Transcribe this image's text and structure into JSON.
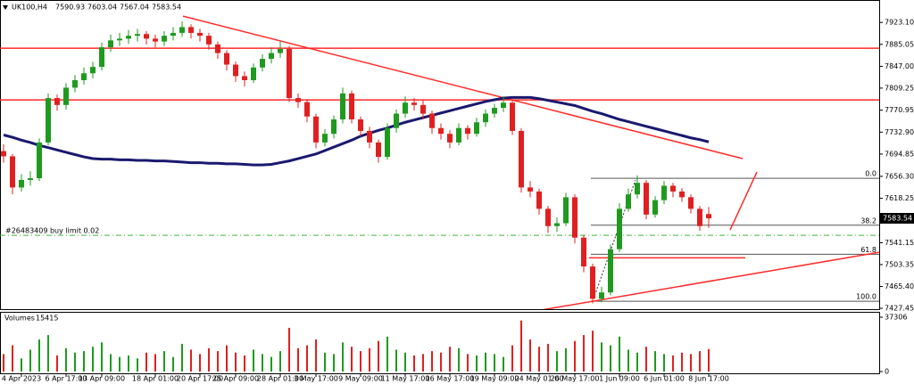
{
  "chart_data": {
    "type": "candlestick",
    "symbol": "UK100,H4",
    "categories": [
      null,
      null,
      "4 Apr 2023",
      null,
      null,
      null,
      null,
      "6 Apr 17:00",
      null,
      null,
      null,
      "13 Apr 09:00",
      null,
      null,
      null,
      null,
      null,
      "18 Apr 01:00",
      null,
      null,
      null,
      null,
      "20 Apr 17:00",
      null,
      null,
      null,
      "25 Apr 09:00",
      null,
      null,
      null,
      null,
      "28 Apr 01:00",
      null,
      null,
      null,
      "3 May 17:00",
      null,
      null,
      null,
      null,
      "9 May 09:00",
      null,
      null,
      null,
      null,
      "11 May 17:00",
      null,
      null,
      null,
      null,
      "16 May 17:00",
      null,
      null,
      null,
      null,
      "19 May 09:00",
      null,
      null,
      null,
      null,
      "24 May 01:00",
      null,
      null,
      null,
      "26 May 17:00",
      null,
      null,
      null,
      null,
      "1 Jun 09:00",
      null,
      null,
      null,
      null,
      "6 Jun 01:00",
      null,
      null,
      null,
      null,
      "8 Jun 17:00"
    ],
    "open": [
      7700,
      7691,
      7637,
      7650,
      7653,
      7715,
      7792,
      7780,
      7810,
      7823,
      7835,
      7846,
      7880,
      7892,
      7895,
      7900,
      7903,
      7895,
      7890,
      7900,
      7905,
      7915,
      7905,
      7900,
      7885,
      7870,
      7850,
      7830,
      7823,
      7845,
      7860,
      7870,
      7877,
      7792,
      7785,
      7760,
      7715,
      7730,
      7755,
      7800,
      7755,
      7735,
      7715,
      7690,
      7740,
      7765,
      7784,
      7780,
      7765,
      7740,
      7730,
      7715,
      7740,
      7730,
      7750,
      7765,
      7775,
      7784,
      7735,
      7637,
      7630,
      7600,
      7570,
      7575,
      7620,
      7550,
      7500,
      7444,
      7455,
      7530,
      7600,
      7625,
      7645,
      7590,
      7615,
      7640,
      7630,
      7620,
      7600,
      7590.93
    ],
    "high": [
      7712,
      7695,
      7660,
      7665,
      7722,
      7800,
      7798,
      7818,
      7832,
      7845,
      7855,
      7888,
      7902,
      7905,
      7910,
      7912,
      7908,
      7902,
      7908,
      7915,
      7925,
      7920,
      7912,
      7905,
      7890,
      7875,
      7855,
      7838,
      7852,
      7868,
      7880,
      7890,
      7882,
      7800,
      7790,
      7765,
      7738,
      7762,
      7810,
      7805,
      7760,
      7742,
      7720,
      7748,
      7772,
      7795,
      7792,
      7788,
      7770,
      7748,
      7736,
      7748,
      7745,
      7758,
      7772,
      7782,
      7795,
      7790,
      7740,
      7648,
      7635,
      7605,
      7585,
      7628,
      7625,
      7555,
      7505,
      7465,
      7538,
      7610,
      7635,
      7658,
      7650,
      7622,
      7648,
      7645,
      7636,
      7625,
      7605,
      7603.04
    ],
    "low": [
      7680,
      7625,
      7630,
      7640,
      7648,
      7710,
      7770,
      7772,
      7802,
      7815,
      7826,
      7840,
      7872,
      7882,
      7886,
      7890,
      7885,
      7880,
      7882,
      7892,
      7898,
      7895,
      7890,
      7876,
      7860,
      7840,
      7820,
      7812,
      7818,
      7838,
      7852,
      7862,
      7785,
      7775,
      7750,
      7705,
      7708,
      7722,
      7748,
      7748,
      7725,
      7705,
      7680,
      7685,
      7732,
      7758,
      7770,
      7755,
      7730,
      7720,
      7705,
      7710,
      7720,
      7725,
      7742,
      7758,
      7768,
      7728,
      7628,
      7620,
      7590,
      7558,
      7560,
      7570,
      7540,
      7490,
      7436,
      7438,
      7450,
      7525,
      7595,
      7618,
      7582,
      7585,
      7608,
      7620,
      7612,
      7592,
      7562,
      7567.04
    ],
    "close": [
      7691,
      7637,
      7650,
      7653,
      7715,
      7792,
      7780,
      7810,
      7823,
      7835,
      7846,
      7880,
      7892,
      7895,
      7900,
      7903,
      7895,
      7890,
      7900,
      7905,
      7915,
      7905,
      7900,
      7885,
      7870,
      7850,
      7830,
      7823,
      7845,
      7860,
      7870,
      7877,
      7792,
      7785,
      7760,
      7715,
      7730,
      7755,
      7800,
      7755,
      7735,
      7715,
      7690,
      7740,
      7765,
      7784,
      7780,
      7765,
      7740,
      7730,
      7715,
      7740,
      7730,
      7750,
      7765,
      7775,
      7784,
      7735,
      7637,
      7630,
      7600,
      7570,
      7575,
      7620,
      7550,
      7500,
      7444,
      7455,
      7530,
      7600,
      7625,
      7645,
      7590,
      7615,
      7640,
      7630,
      7620,
      7600,
      7570,
      7583.54
    ],
    "volume": [
      12000,
      18000,
      9000,
      15000,
      22000,
      25000,
      11000,
      16000,
      13000,
      14000,
      17000,
      20000,
      12000,
      10000,
      11000,
      9000,
      13000,
      12000,
      14000,
      10000,
      19000,
      15000,
      12000,
      16000,
      14000,
      18000,
      13000,
      11000,
      15000,
      12000,
      10000,
      14000,
      30000,
      16000,
      18000,
      22000,
      13000,
      12000,
      20000,
      17000,
      14000,
      16000,
      21000,
      24000,
      15000,
      13000,
      11000,
      12000,
      14000,
      13000,
      17000,
      16000,
      12000,
      11000,
      13000,
      12000,
      10000,
      18000,
      35000,
      22000,
      17000,
      19000,
      14000,
      16000,
      21000,
      25000,
      28000,
      20000,
      18000,
      24000,
      15000,
      13000,
      17000,
      14000,
      12000,
      11000,
      13000,
      12000,
      14000,
      15415
    ],
    "up_color": "#1f9a1f",
    "down_color": "#e02020",
    "ylim": [
      7426,
      7962
    ],
    "yticks": [
      {
        "value": 7923.1,
        "label": "7923.10"
      },
      {
        "value": 7885.05,
        "label": "7885.05"
      },
      {
        "value": 7847,
        "label": "7847.00"
      },
      {
        "value": 7809.25,
        "label": "7809.25"
      },
      {
        "value": 7770.95,
        "label": "7770.95"
      },
      {
        "value": 7732.9,
        "label": "7732.90"
      },
      {
        "value": 7694.85,
        "label": "7694.85"
      },
      {
        "value": 7656.3,
        "label": "7656.30"
      },
      {
        "value": 7618.25,
        "label": "7618.25"
      },
      {
        "value": 7541.15,
        "label": "7541.15"
      },
      {
        "value": 7503.35,
        "label": "7503.35"
      },
      {
        "value": 7465.4,
        "label": "7465.40"
      },
      {
        "value": 7427.45,
        "label": "7427.45"
      }
    ],
    "volume_label": "Volumes",
    "vlim": [
      0,
      37306
    ],
    "vticks": [
      0,
      37306
    ],
    "ma": {
      "color": "#191970",
      "values": [
        7728,
        7724,
        7719,
        7715,
        7710,
        7706,
        7702,
        7698,
        7694,
        7690,
        7687,
        7686,
        7686,
        7685,
        7685,
        7684,
        7684,
        7683,
        7683,
        7682,
        7681,
        7680,
        7680,
        7679,
        7679,
        7678,
        7678,
        7677,
        7676,
        7676,
        7677,
        7680,
        7683,
        7687,
        7691,
        7695,
        7701,
        7707,
        7713,
        7719,
        7726,
        7731,
        7736,
        7740,
        7745,
        7750,
        7754,
        7758,
        7762,
        7766,
        7770,
        7774,
        7778,
        7782,
        7786,
        7789,
        7792,
        7793,
        7793,
        7793,
        7791,
        7788,
        7785,
        7782,
        7779,
        7774,
        7769,
        7765,
        7760,
        7755,
        7751,
        7747,
        7743,
        7739,
        7735,
        7731,
        7727,
        7723,
        7720,
        7716
      ]
    },
    "line_color": "#ff2a2a",
    "hlines": [
      7878.3,
      7788.8
    ],
    "trendlines": [
      {
        "x": [
          20.1,
          82.8
        ],
        "y": [
          7934,
          7687
        ]
      },
      {
        "x": [
          59.6,
          98.1
        ],
        "y": [
          7422.8,
          7524.7
        ]
      },
      {
        "x": [
          81.4,
          84.4
        ],
        "y": [
          7563.3,
          7663.7
        ]
      }
    ],
    "segments": [
      {
        "x": [
          65.6,
          83.1
        ],
        "y": 7515
      }
    ],
    "order": {
      "price": 7554,
      "label": "#26483409 buy limit 0.02",
      "color": "#3cb83c"
    },
    "fib": {
      "high": 7652.9,
      "low": 7439.8,
      "start": 65.8,
      "color": "#555555",
      "levels": [
        {
          "value": 0,
          "label": "0.0"
        },
        38.2,
        61.8,
        {
          "value": 100,
          "label": "100.0"
        }
      ],
      "base": {
        "x": [
          66.1,
          70.8
        ],
        "y": [
          7444,
          7650
        ]
      }
    }
  }
}
